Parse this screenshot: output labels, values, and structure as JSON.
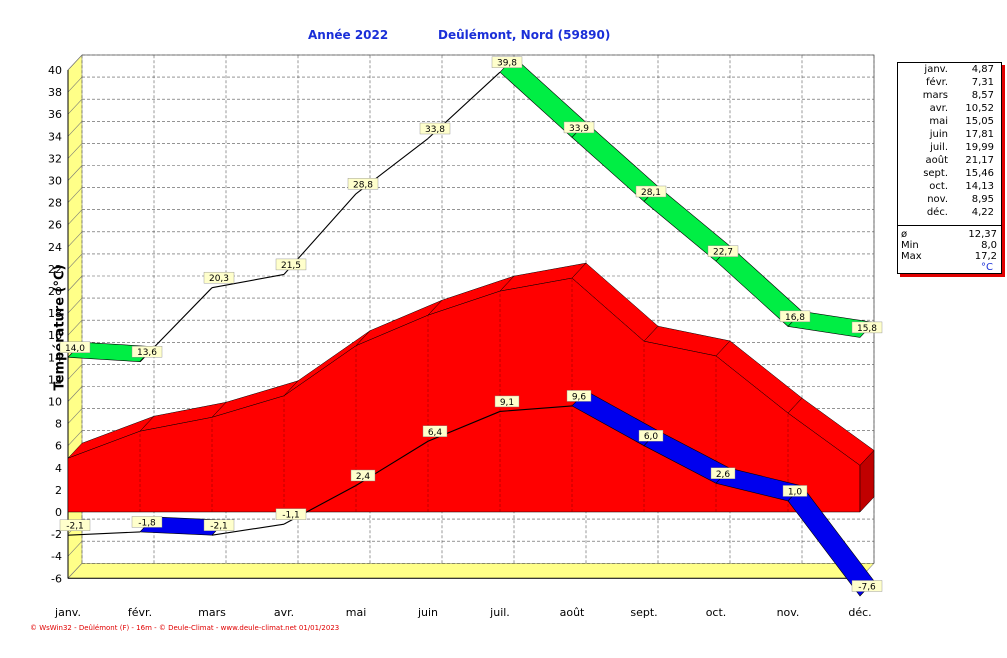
{
  "header": {
    "year_label": "Année  2022",
    "location": "Deûlémont, Nord (59890)"
  },
  "footer": "© WsWin32  -  Deûlémont (F) - 16m  -  © Deule-Climat - www.deule-climat.net  01/01/2023",
  "colors": {
    "max": "#00ee44",
    "mean": "#ff0000",
    "min": "#0000ee",
    "wall": "#ffff88",
    "title": "#1a2fd8"
  },
  "chart_data": {
    "type": "area",
    "categories": [
      "janv.",
      "févr.",
      "mars",
      "avr.",
      "mai",
      "juin",
      "juil.",
      "août",
      "sept.",
      "oct.",
      "nov.",
      "déc."
    ],
    "ylabel": "Température  (°C)",
    "ylim": [
      -6,
      40
    ],
    "yticks": [
      -6,
      -4,
      -2,
      0,
      2,
      4,
      6,
      8,
      10,
      12,
      14,
      16,
      18,
      20,
      22,
      24,
      26,
      28,
      30,
      32,
      34,
      36,
      38,
      40
    ],
    "grid": true,
    "series": [
      {
        "values": [
          14.0,
          13.6,
          20.3,
          21.5,
          28.8,
          33.8,
          39.8,
          33.9,
          28.1,
          22.7,
          16.8,
          15.8
        ],
        "labels": [
          "14,0",
          "13,6",
          "20,3",
          "21,5",
          "28,8",
          "33,8",
          "39,8",
          "33,9",
          "28,1",
          "22,7",
          "16,8",
          "15,8"
        ]
      },
      {
        "values": [
          4.87,
          7.31,
          8.57,
          10.52,
          15.05,
          17.81,
          19.99,
          21.17,
          15.46,
          14.13,
          8.95,
          4.22
        ]
      },
      {
        "values": [
          -2.1,
          -1.8,
          -2.1,
          -1.1,
          2.4,
          6.4,
          9.1,
          9.6,
          6.0,
          2.6,
          1.0,
          -7.6
        ],
        "labels": [
          "-2,1",
          "-1,8",
          "-2,1",
          "-1,1",
          "2,4",
          "6,4",
          "9,1",
          "9,6",
          "6,0",
          "2,6",
          "1,0",
          "-7,6"
        ]
      }
    ]
  },
  "legend": {
    "months": [
      {
        "m": "janv.",
        "v": "4,87"
      },
      {
        "m": "févr.",
        "v": "7,31"
      },
      {
        "m": "mars",
        "v": "8,57"
      },
      {
        "m": "avr.",
        "v": "10,52"
      },
      {
        "m": "mai",
        "v": "15,05"
      },
      {
        "m": "juin",
        "v": "17,81"
      },
      {
        "m": "juil.",
        "v": "19,99"
      },
      {
        "m": "août",
        "v": "21,17"
      },
      {
        "m": "sept.",
        "v": "15,46"
      },
      {
        "m": "oct.",
        "v": "14,13"
      },
      {
        "m": "nov.",
        "v": "8,95"
      },
      {
        "m": "déc.",
        "v": "4,22"
      }
    ],
    "stats": [
      {
        "l": "ø",
        "v": "12,37"
      },
      {
        "l": "Min",
        "v": "8,0"
      },
      {
        "l": "Max",
        "v": "17,2"
      }
    ],
    "unit": "°C"
  }
}
